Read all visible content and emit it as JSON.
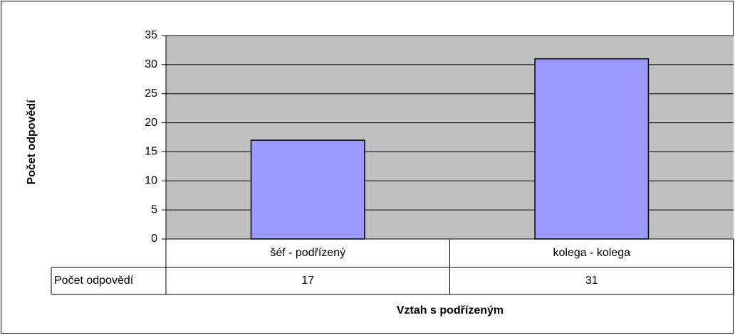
{
  "chart_data": {
    "type": "bar",
    "x_label": "Vztah s podřízeným",
    "y_label": "Počet odpovědí",
    "categories": [
      "šéf - podřízený",
      "kolega - kolega"
    ],
    "series": [
      {
        "name": "Počet odpovědí",
        "color": "#9999ff",
        "values": [
          17,
          31
        ]
      }
    ],
    "ylim": [
      0,
      35
    ],
    "yticks": [
      0,
      5,
      10,
      15,
      20,
      25,
      30,
      35
    ],
    "grid": true,
    "plot_background": "#c0c0c0"
  }
}
